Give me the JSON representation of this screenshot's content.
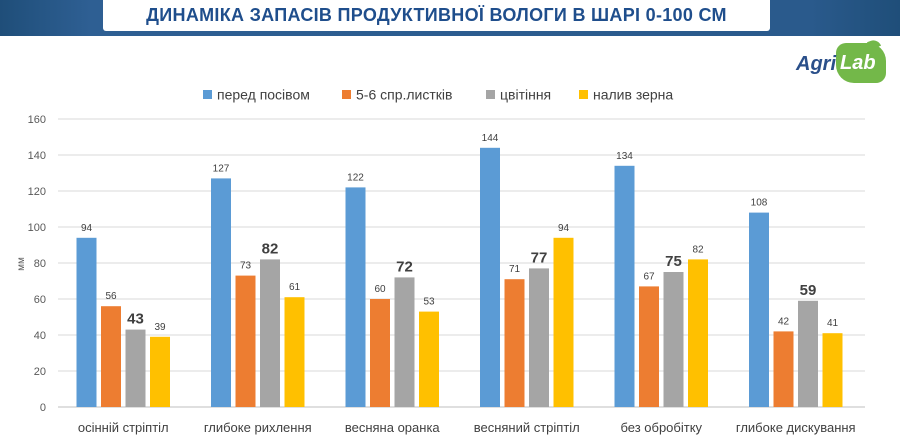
{
  "title": "ДИНАМІКА ЗАПАСІВ ПРОДУКТИВНОЇ ВОЛОГИ В ШАРІ 0-100 СМ",
  "logo": {
    "part1": "Agri",
    "part2": "Lab"
  },
  "chart_data": {
    "type": "bar",
    "ylabel": "мм",
    "ylim": [
      0,
      160
    ],
    "yticks": [
      0,
      20,
      40,
      60,
      80,
      100,
      120,
      140,
      160
    ],
    "grid": true,
    "legend_position": "top",
    "categories": [
      "осінній стріптіл",
      "глибоке рихлення",
      "весняна оранка",
      "весняний стріптіл",
      "без обробітку",
      "глибоке дискування"
    ],
    "series": [
      {
        "name": "перед посівом",
        "color": "#5b9bd5",
        "values": [
          94,
          127,
          122,
          144,
          134,
          108
        ]
      },
      {
        "name": "5-6 спр.листків",
        "color": "#ed7d31",
        "values": [
          56,
          73,
          60,
          71,
          67,
          42
        ]
      },
      {
        "name": "цвітіння",
        "color": "#a5a5a5",
        "values": [
          43,
          82,
          72,
          77,
          75,
          59
        ],
        "emphasized_labels": true
      },
      {
        "name": "налив зерна",
        "color": "#ffc000",
        "values": [
          39,
          61,
          53,
          94,
          82,
          41
        ]
      }
    ]
  }
}
